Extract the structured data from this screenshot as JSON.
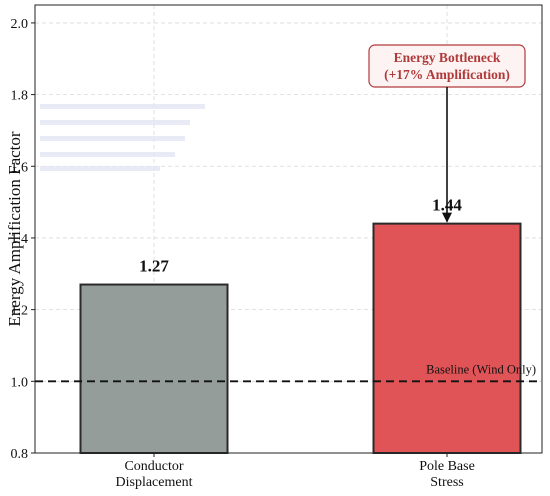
{
  "chart_data": {
    "type": "bar",
    "categories": [
      [
        "Conductor",
        "Displacement"
      ],
      [
        "Pole Base",
        "Stress"
      ]
    ],
    "values": [
      1.27,
      1.44
    ],
    "value_labels": [
      "1.27",
      "1.44"
    ],
    "bar_colors": [
      "#959d9b",
      "#e05457"
    ],
    "ylabel": "Energy Amplification Factor",
    "xlabel": "",
    "ylim": [
      0.8,
      2.05
    ],
    "yticks": [
      0.8,
      1.0,
      1.2,
      1.4,
      1.6,
      1.8,
      2.0
    ],
    "ytick_labels": [
      "0.8",
      "1.0",
      "1.2",
      "1.4",
      "1.6",
      "1.8",
      "2.0"
    ],
    "grid": true,
    "baseline": {
      "y": 1.0,
      "label": "Baseline (Wind Only)"
    },
    "annotation": {
      "lines": [
        "Energy Bottleneck",
        "(+17% Amplification)"
      ],
      "color": "#b03a3a",
      "target_bar": 1
    }
  }
}
